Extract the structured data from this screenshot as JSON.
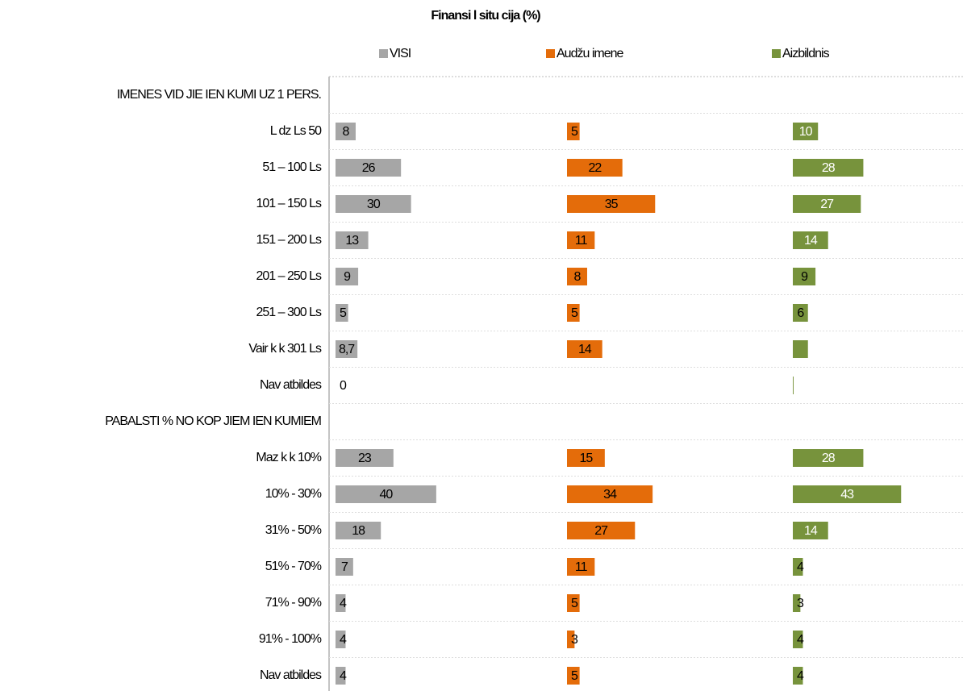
{
  "chart_data": {
    "type": "bar",
    "orientation": "horizontal",
    "title": "Finansi l situ cija (%)",
    "categories": [
      "IMENES VID JIE IEN KUMI UZ 1 PERS.",
      "L dz Ls 50",
      "51 – 100 Ls",
      "101 – 150 Ls",
      "151 – 200 Ls",
      "201 – 250 Ls",
      "251 – 300 Ls",
      "Vair k k 301 Ls",
      "Nav atbildes",
      "PABALSTI % NO KOP JIEM IEN KUMIEM",
      "Maz k k 10%",
      "10% - 30%",
      "31% - 50%",
      "51% - 70%",
      "71% - 90%",
      "91% - 100%",
      "Nav atbildes"
    ],
    "xlim": [
      0,
      90
    ],
    "legend": "top",
    "series": [
      {
        "name": "VISI",
        "color": "#a6a6a6",
        "values": [
          null,
          8,
          26,
          30,
          13,
          9,
          5,
          8.7,
          0,
          null,
          23,
          40,
          18,
          7,
          4,
          4,
          4
        ],
        "value_labels": [
          null,
          "8",
          "26",
          "30",
          "13",
          "9",
          "5",
          "8,7",
          "0",
          null,
          "23",
          "40",
          "18",
          "7",
          "4",
          "4",
          "4"
        ]
      },
      {
        "name": "Audžu imene",
        "color": "#e46c0a",
        "values": [
          null,
          5,
          22,
          35,
          11,
          8,
          5,
          14,
          null,
          null,
          15,
          34,
          27,
          11,
          5,
          3,
          5
        ],
        "value_labels": [
          null,
          "5",
          "22",
          "35",
          "11",
          "8",
          "5",
          "14",
          null,
          null,
          "15",
          "34",
          "27",
          "11",
          "5",
          "3",
          "5"
        ]
      },
      {
        "name": "Aizbildnis",
        "color": "#77933c",
        "values": [
          null,
          10,
          28,
          27,
          14,
          9,
          6,
          6,
          0.3,
          null,
          28,
          43,
          14,
          4,
          3,
          4,
          4
        ],
        "value_labels": [
          null,
          "10",
          "28",
          "27",
          "14",
          "9",
          "6",
          null,
          null,
          null,
          "28",
          "43",
          "14",
          "4",
          "3",
          "4",
          "4"
        ]
      }
    ]
  }
}
